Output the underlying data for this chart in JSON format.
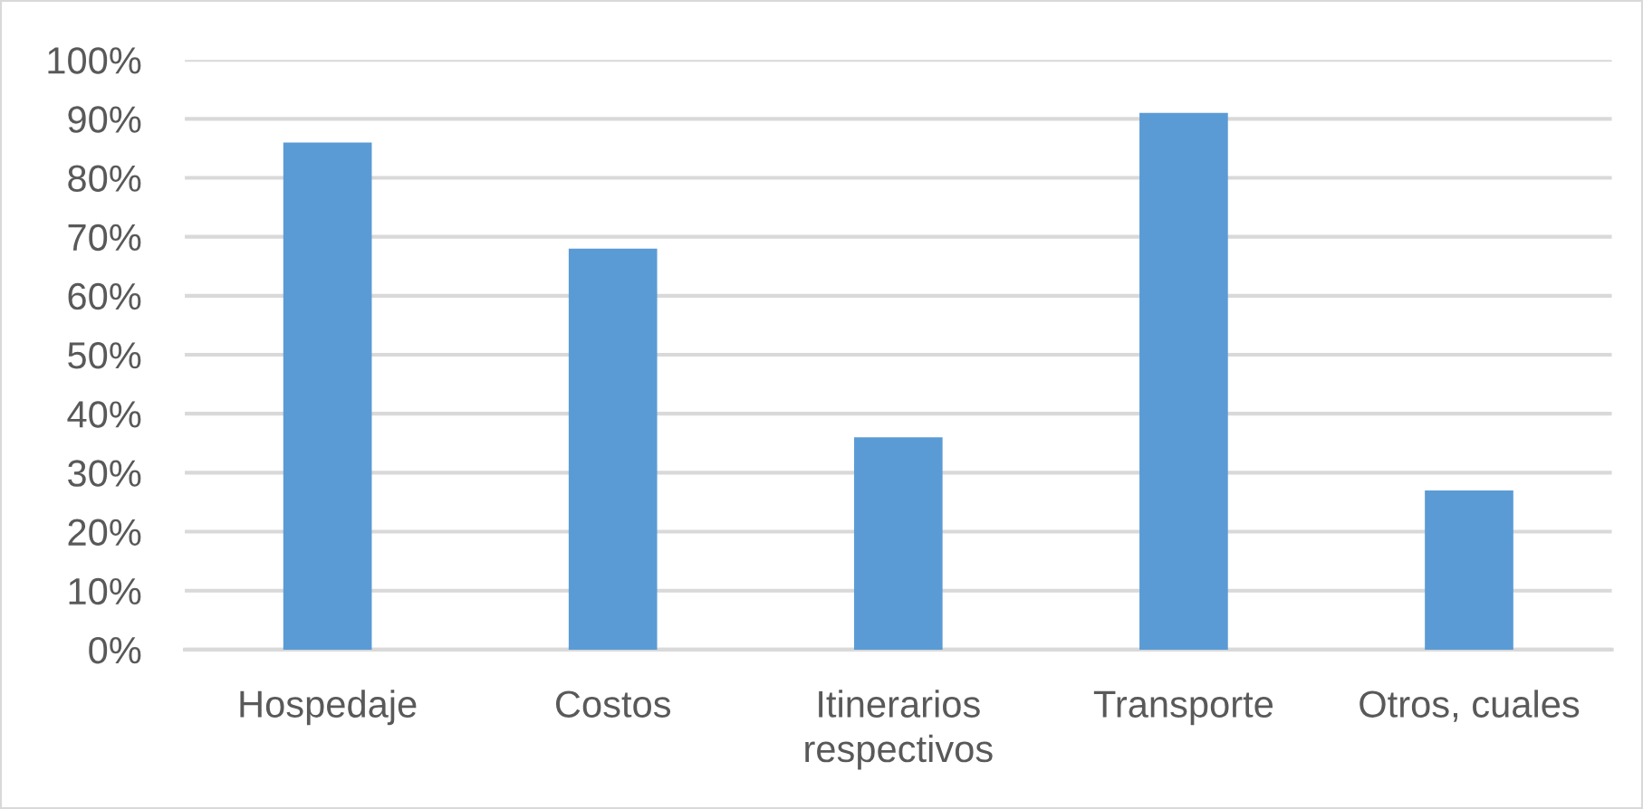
{
  "chart_data": {
    "type": "bar",
    "categories": [
      "Hospedaje",
      "Costos",
      "Itinerarios respectivos",
      "Transporte",
      "Otros, cuales"
    ],
    "values": [
      86,
      68,
      36,
      91,
      27
    ],
    "color": "#5b9bd5",
    "ylim": [
      0,
      100
    ],
    "yticks": [
      {
        "value": 0,
        "label": "0%"
      },
      {
        "value": 10,
        "label": "10%"
      },
      {
        "value": 20,
        "label": "20%"
      },
      {
        "value": 30,
        "label": "30%"
      },
      {
        "value": 40,
        "label": "40%"
      },
      {
        "value": 50,
        "label": "50%"
      },
      {
        "value": 60,
        "label": "60%"
      },
      {
        "value": 70,
        "label": "70%"
      },
      {
        "value": 80,
        "label": "80%"
      },
      {
        "value": 90,
        "label": "90%"
      },
      {
        "value": 100,
        "label": "100%"
      }
    ],
    "grid": "y",
    "legend": false
  }
}
